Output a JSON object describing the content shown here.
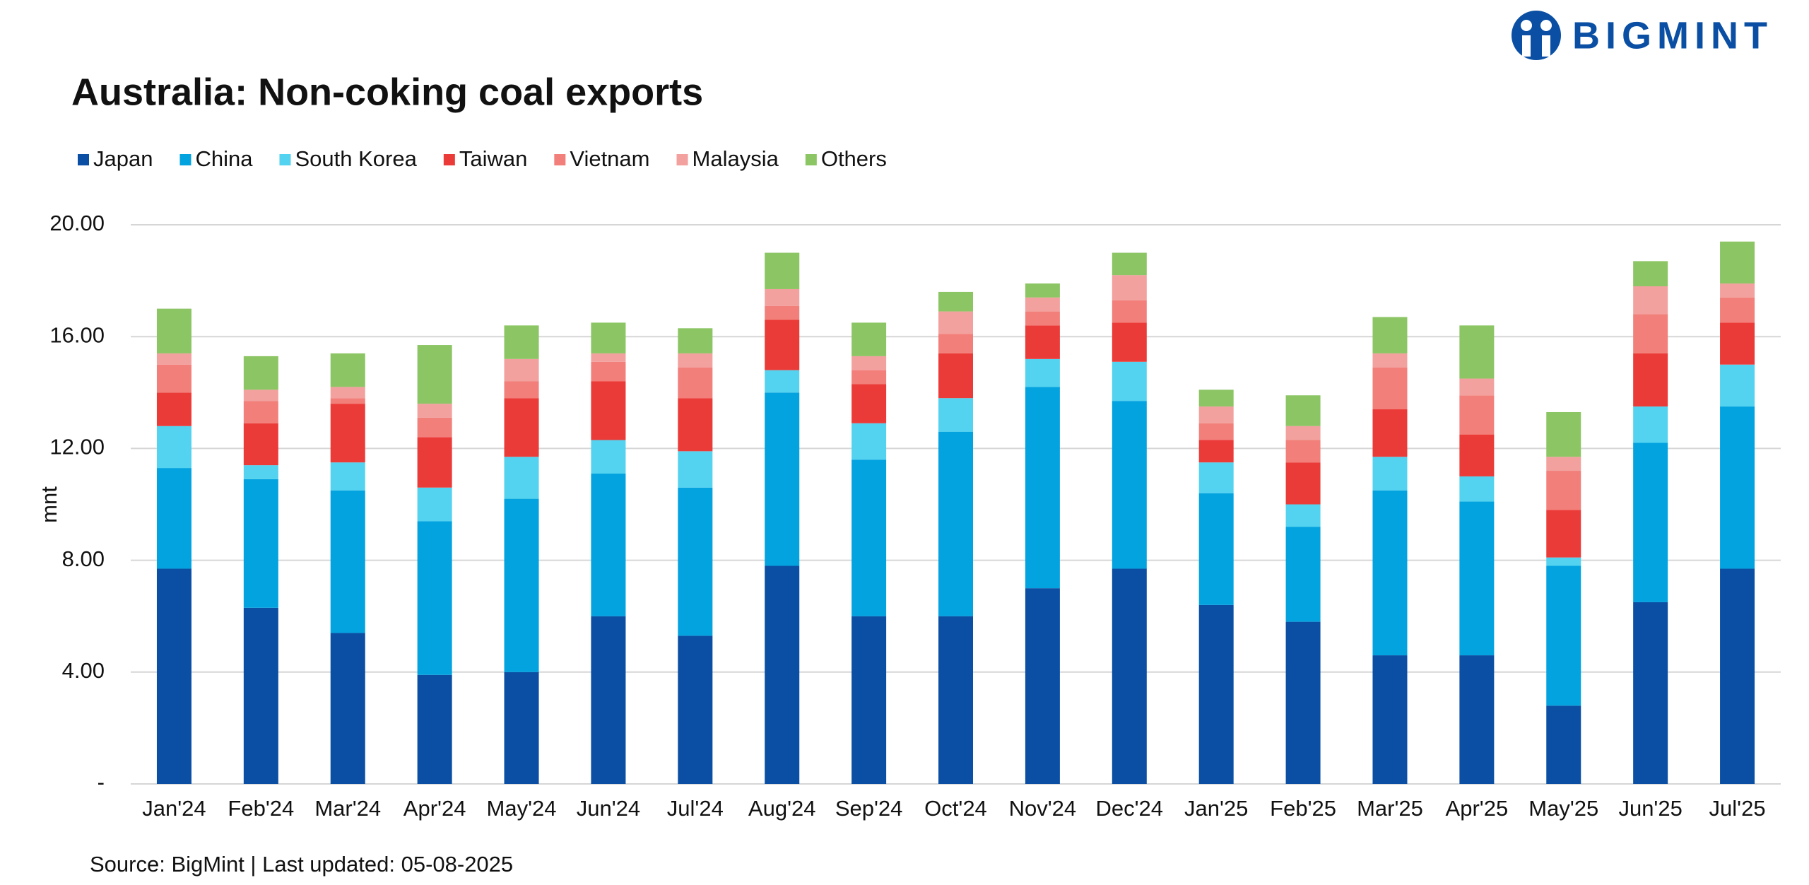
{
  "logo": "BIGMINT",
  "chart_data": {
    "type": "stacked_bar",
    "title": "Australia: Non-coking coal exports",
    "y_label": "mnt",
    "source": "Source: BigMint | Last updated: 05-08-2025",
    "categories": [
      "Jan'24",
      "Feb'24",
      "Mar'24",
      "Apr'24",
      "May'24",
      "Jun'24",
      "Jul'24",
      "Aug'24",
      "Sep'24",
      "Oct'24",
      "Nov'24",
      "Dec'24",
      "Jan'25",
      "Feb'25",
      "Mar'25",
      "Apr'25",
      "May'25",
      "Jun'25",
      "Jul'25"
    ],
    "series": [
      {
        "name": "Japan",
        "color": "#0a4fa3",
        "values": [
          7.7,
          6.3,
          5.4,
          3.9,
          4.0,
          6.0,
          5.3,
          7.8,
          6.0,
          6.0,
          7.0,
          7.7,
          6.4,
          5.8,
          4.6,
          4.6,
          2.8,
          6.5,
          7.7
        ]
      },
      {
        "name": "China",
        "color": "#03a3e0",
        "values": [
          3.6,
          4.6,
          5.1,
          5.5,
          6.2,
          5.1,
          5.3,
          6.2,
          5.6,
          6.6,
          7.2,
          6.0,
          4.0,
          3.4,
          5.9,
          5.5,
          5.0,
          5.7,
          5.8
        ]
      },
      {
        "name": "South Korea",
        "color": "#53d3ef",
        "values": [
          1.5,
          0.5,
          1.0,
          1.2,
          1.5,
          1.2,
          1.3,
          0.8,
          1.3,
          1.2,
          1.0,
          1.4,
          1.1,
          0.8,
          1.2,
          0.9,
          0.3,
          1.3,
          1.5
        ]
      },
      {
        "name": "Taiwan",
        "color": "#eb3b38",
        "values": [
          1.2,
          1.5,
          2.1,
          1.8,
          2.1,
          2.1,
          1.9,
          1.8,
          1.4,
          1.6,
          1.2,
          1.4,
          0.8,
          1.5,
          1.7,
          1.5,
          1.7,
          1.9,
          1.5
        ]
      },
      {
        "name": "Vietnam",
        "color": "#f27f7a",
        "values": [
          1.0,
          0.8,
          0.2,
          0.7,
          0.6,
          0.7,
          1.1,
          0.5,
          0.5,
          0.7,
          0.5,
          0.8,
          0.6,
          0.8,
          1.5,
          1.4,
          1.4,
          1.4,
          0.9
        ]
      },
      {
        "name": "Malaysia",
        "color": "#f2a19e",
        "values": [
          0.4,
          0.4,
          0.4,
          0.5,
          0.8,
          0.3,
          0.5,
          0.6,
          0.5,
          0.8,
          0.5,
          0.9,
          0.6,
          0.5,
          0.5,
          0.6,
          0.5,
          1.0,
          0.5
        ]
      },
      {
        "name": "Others",
        "color": "#8cc564",
        "values": [
          1.6,
          1.2,
          1.2,
          2.1,
          1.2,
          1.1,
          0.9,
          1.3,
          1.2,
          0.7,
          0.5,
          0.8,
          0.6,
          1.1,
          1.3,
          1.9,
          1.6,
          0.9,
          1.5
        ]
      }
    ],
    "ylim": [
      0,
      20
    ],
    "yticks": [
      {
        "value": 0,
        "label": "-"
      },
      {
        "value": 4,
        "label": "4.00"
      },
      {
        "value": 8,
        "label": "8.00"
      },
      {
        "value": 12,
        "label": "12.00"
      },
      {
        "value": 16,
        "label": "16.00"
      },
      {
        "value": 20,
        "label": "20.00"
      }
    ],
    "grid": true
  }
}
